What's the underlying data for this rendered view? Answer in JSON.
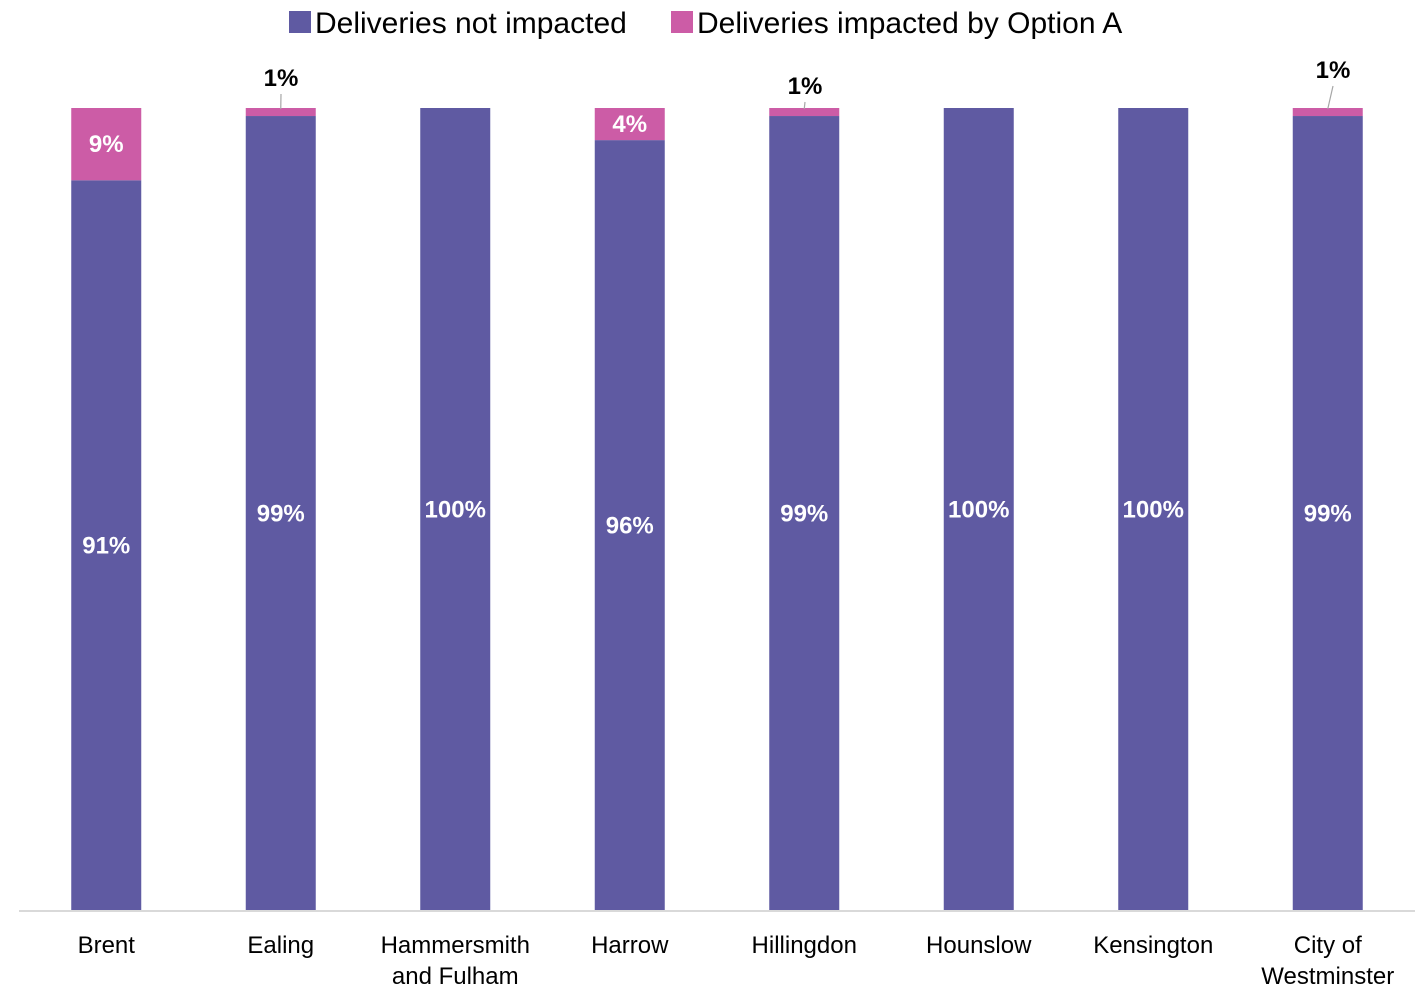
{
  "chart_data": {
    "type": "bar",
    "stacked": true,
    "categories": [
      [
        "Brent"
      ],
      [
        "Ealing"
      ],
      [
        "Hammersmith",
        "and Fulham"
      ],
      [
        "Harrow"
      ],
      [
        "Hillingdon"
      ],
      [
        "Hounslow"
      ],
      [
        "Kensington"
      ],
      [
        "City of",
        "Westminster"
      ]
    ],
    "series": [
      {
        "name": "Deliveries not impacted",
        "color": "#5f5aa2",
        "values": [
          91,
          99,
          100,
          96,
          99,
          100,
          100,
          99
        ],
        "labels": [
          "91%",
          "99%",
          "100%",
          "96%",
          "99%",
          "100%",
          "100%",
          "99%"
        ]
      },
      {
        "name": "Deliveries impacted by Option A",
        "color": "#cc5ca6",
        "values": [
          9,
          1,
          0,
          4,
          1,
          0,
          0,
          1
        ],
        "labels": [
          "9%",
          "1%",
          "",
          "4%",
          "1%",
          "",
          "",
          "1%"
        ]
      }
    ],
    "ylim": [
      0,
      100
    ],
    "legend_position": "top",
    "grid": false
  }
}
